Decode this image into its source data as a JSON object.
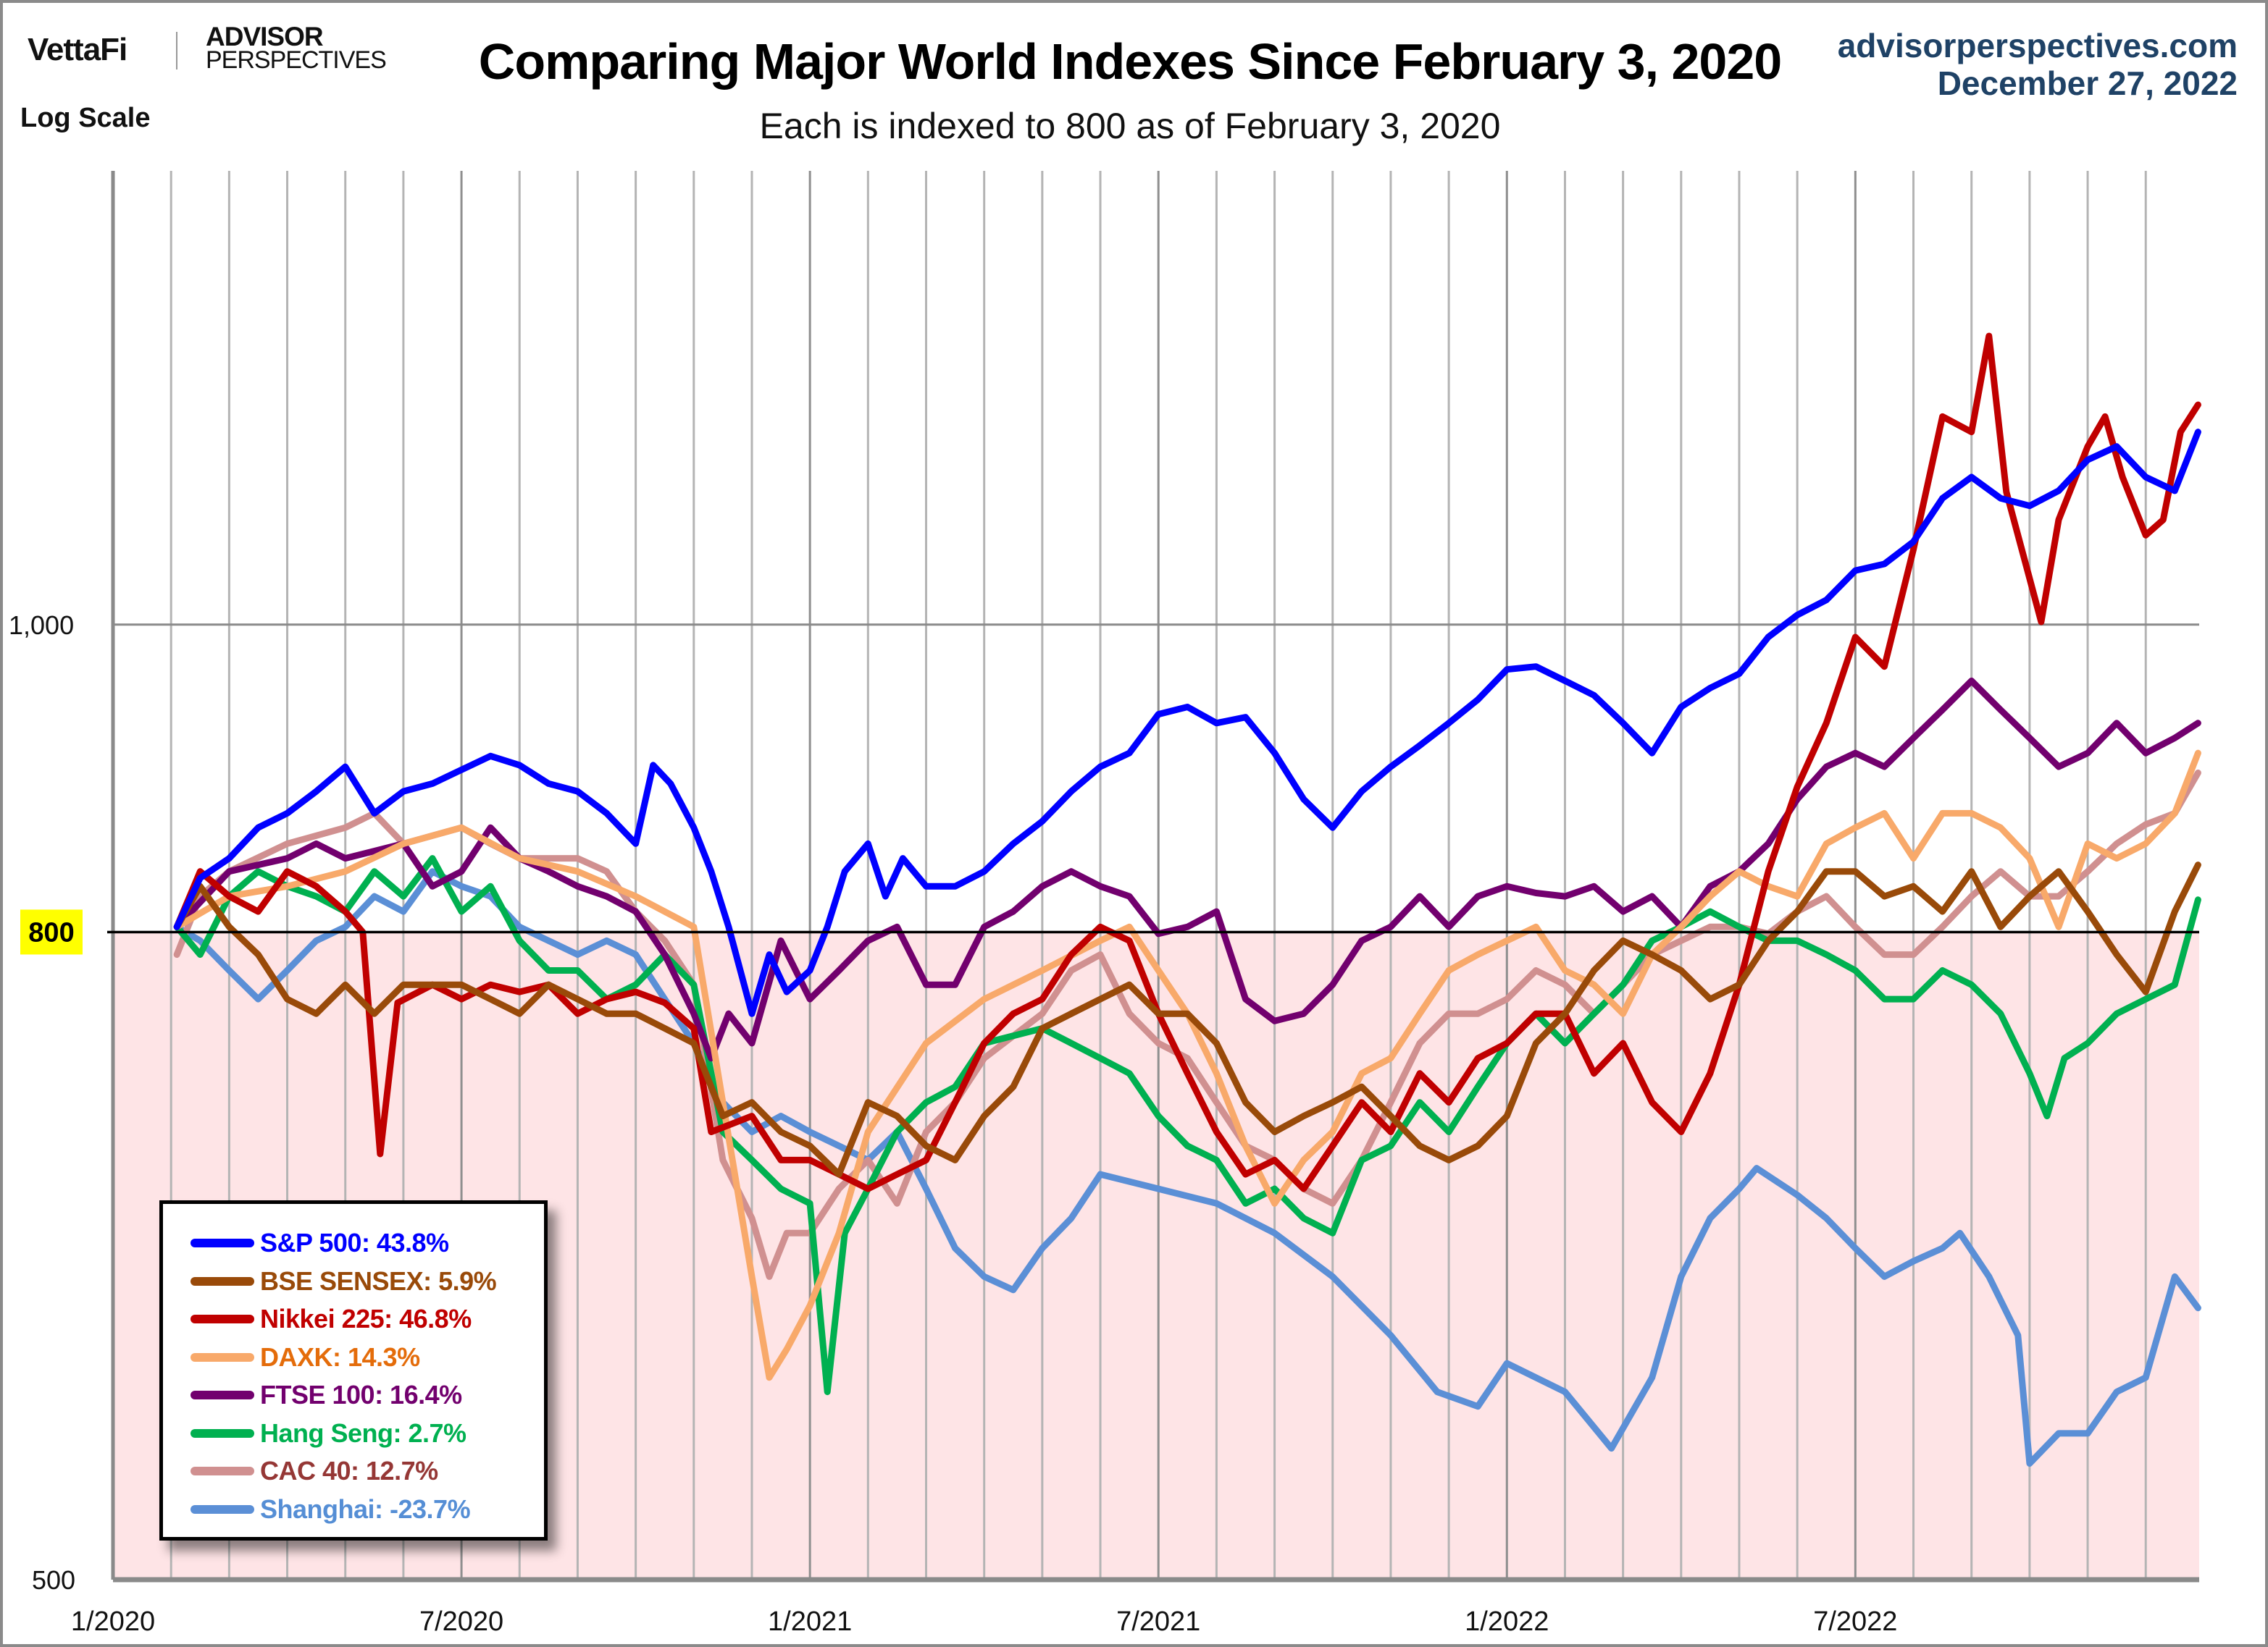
{
  "header": {
    "brand_vettafi": "VettaFi",
    "brand_advisor": "ADVISOR",
    "brand_perspectives": "PERSPECTIVES",
    "scale_note": "Log Scale",
    "site": "advisorperspectives.com",
    "date": "December 27, 2022"
  },
  "chart_data": {
    "type": "line",
    "title": "Comparing Major World Indexes Since February 3, 2020",
    "subtitle": "Each is indexed to 800 as of February 3, 2020",
    "xlabel": "",
    "ylabel": "",
    "y_scale": "log",
    "ylim": [
      500,
      1390
    ],
    "x_unit": "months since 1/2020",
    "xlim": [
      0,
      35.92
    ],
    "x_ticks": [
      {
        "x": 0,
        "label": "1/2020"
      },
      {
        "x": 6,
        "label": "7/2020"
      },
      {
        "x": 12,
        "label": "1/2021"
      },
      {
        "x": 18,
        "label": "7/2021"
      },
      {
        "x": 24,
        "label": "1/2022"
      },
      {
        "x": 30,
        "label": "7/2022"
      }
    ],
    "y_ticks": [
      {
        "value": 500,
        "label": "500"
      },
      {
        "value": 800,
        "label": "800",
        "highlight": true
      },
      {
        "value": 1000,
        "label": "1,000"
      }
    ],
    "reference_line": {
      "value": 800,
      "shade_below": true
    },
    "grid": {
      "vertical": "monthly",
      "horizontal": [
        1000
      ]
    },
    "legend_position": "bottom-left",
    "series": [
      {
        "name": "S&P 500",
        "label": "S&P 500: 43.8%",
        "change_pct": 43.8,
        "color": "#0000ff",
        "text_color": "#0000ff",
        "x": [
          1.1,
          1.5,
          2,
          2.5,
          3,
          3.5,
          4,
          4.5,
          5,
          5.5,
          6,
          6.5,
          7,
          7.5,
          8,
          8.5,
          9,
          9.3,
          9.6,
          10,
          10.3,
          10.6,
          11,
          11.3,
          11.6,
          12,
          12.3,
          12.6,
          13,
          13.3,
          13.6,
          14,
          14.5,
          15,
          15.5,
          16,
          16.5,
          17,
          17.5,
          18,
          18.5,
          19,
          19.5,
          20,
          20.5,
          21,
          21.5,
          22,
          22.5,
          23,
          23.5,
          24,
          24.5,
          25,
          25.5,
          26,
          26.5,
          27,
          27.5,
          28,
          28.5,
          29,
          29.5,
          30,
          30.5,
          31,
          31.5,
          32,
          32.5,
          33,
          33.5,
          34,
          34.5,
          35,
          35.5,
          35.9
        ],
        "values": [
          803,
          832,
          844,
          863,
          872,
          886,
          902,
          872,
          886,
          891,
          900,
          909,
          903,
          891,
          886,
          872,
          853,
          903,
          891,
          863,
          836,
          803,
          754,
          787,
          766,
          778,
          803,
          836,
          853,
          821,
          844,
          827,
          827,
          836,
          853,
          867,
          886,
          902,
          911,
          937,
          942,
          931,
          935,
          911,
          881,
          863,
          886,
          902,
          916,
          931,
          947,
          968,
          970,
          960,
          950,
          931,
          911,
          942,
          955,
          965,
          991,
          1007,
          1018,
          1040,
          1045,
          1062,
          1096,
          1113,
          1096,
          1090,
          1102,
          1127,
          1138,
          1113,
          1102,
          1150
        ]
      },
      {
        "name": "BSE SENSEX",
        "label": "BSE SENSEX: 5.9%",
        "change_pct": 5.9,
        "color": "#994a09",
        "text_color": "#994a09",
        "x": [
          1.1,
          1.5,
          2,
          2.5,
          3,
          3.5,
          4,
          4.5,
          5,
          6,
          6.5,
          7,
          7.5,
          8,
          8.5,
          9,
          9.5,
          10,
          10.5,
          11,
          11.5,
          12,
          12.5,
          13,
          13.5,
          14,
          14.5,
          15,
          15.5,
          16,
          16.5,
          17,
          17.5,
          18,
          18.5,
          19,
          19.5,
          20,
          20.5,
          21,
          21.5,
          22,
          22.5,
          23,
          23.5,
          24,
          24.5,
          25,
          25.5,
          26,
          26.5,
          27,
          27.5,
          28,
          28.5,
          29,
          29.5,
          30,
          30.5,
          31,
          31.5,
          32,
          32.5,
          33,
          33.5,
          34,
          34.5,
          35,
          35.5,
          35.9
        ],
        "values": [
          803,
          827,
          803,
          787,
          762,
          754,
          770,
          754,
          770,
          770,
          762,
          754,
          770,
          762,
          754,
          754,
          746,
          738,
          700,
          707,
          692,
          685,
          671,
          707,
          700,
          685,
          678,
          700,
          715,
          746,
          754,
          762,
          770,
          754,
          754,
          738,
          707,
          692,
          700,
          707,
          715,
          700,
          685,
          678,
          685,
          700,
          738,
          754,
          778,
          795,
          787,
          778,
          762,
          770,
          795,
          812,
          836,
          836,
          821,
          827,
          812,
          836,
          803,
          821,
          836,
          812,
          787,
          766,
          812,
          840
        ]
      },
      {
        "name": "Nikkei 225",
        "label": "Nikkei 225: 46.8%",
        "change_pct": 46.8,
        "color": "#c00000",
        "text_color": "#c00000",
        "x": [
          1.1,
          1.5,
          2,
          2.5,
          3,
          3.5,
          4,
          4.3,
          4.6,
          4.9,
          5.5,
          6,
          6.5,
          7,
          7.5,
          8,
          8.5,
          9,
          9.5,
          10,
          10.3,
          11,
          11.5,
          12,
          12.5,
          13,
          13.5,
          14,
          14.5,
          15,
          15.5,
          16,
          16.5,
          17,
          17.5,
          18,
          18.5,
          19,
          19.5,
          20,
          20.5,
          21,
          21.5,
          22,
          22.5,
          23,
          23.5,
          24,
          24.5,
          25,
          25.5,
          26,
          26.5,
          27,
          27.5,
          28,
          28.5,
          29,
          29.5,
          30,
          30.5,
          31,
          31.5,
          32,
          32.3,
          32.6,
          33,
          33.2,
          33.5,
          34,
          34.3,
          34.6,
          35,
          35.3,
          35.6,
          35.9
        ],
        "values": [
          803,
          836,
          821,
          812,
          836,
          827,
          812,
          800,
          681,
          760,
          770,
          762,
          770,
          766,
          770,
          754,
          762,
          766,
          760,
          746,
          692,
          700,
          678,
          678,
          671,
          664,
          671,
          678,
          707,
          738,
          754,
          762,
          787,
          803,
          795,
          754,
          722,
          692,
          671,
          678,
          664,
          685,
          707,
          692,
          722,
          707,
          730,
          738,
          754,
          754,
          722,
          738,
          707,
          692,
          722,
          770,
          836,
          889,
          931,
          991,
          970,
          1056,
          1163,
          1150,
          1233,
          1101,
          1034,
          1002,
          1079,
          1138,
          1163,
          1113,
          1067,
          1079,
          1150,
          1173
        ]
      },
      {
        "name": "DAXK",
        "label": "DAXK: 14.3%",
        "change_pct": 14.3,
        "color": "#f8a96a",
        "text_color": "#e46c0a",
        "x": [
          1.1,
          2,
          3,
          4,
          5,
          6,
          7,
          8,
          9,
          10,
          10.5,
          11,
          11.3,
          11.6,
          12,
          12.5,
          13,
          14,
          15,
          16,
          17,
          17.5,
          18,
          18.5,
          19,
          19.5,
          20,
          20.5,
          21,
          21.5,
          22,
          22.5,
          23,
          23.5,
          24,
          24.5,
          25,
          25.5,
          26,
          26.5,
          27,
          27.5,
          28,
          28.5,
          29,
          29.5,
          30,
          30.5,
          31,
          31.5,
          32,
          32.5,
          33,
          33.5,
          34,
          34.5,
          35,
          35.5,
          35.9
        ],
        "values": [
          803,
          821,
          827,
          836,
          853,
          863,
          844,
          836,
          821,
          803,
          707,
          623,
          579,
          591,
          610,
          643,
          692,
          738,
          762,
          778,
          795,
          803,
          778,
          754,
          722,
          685,
          657,
          678,
          692,
          722,
          730,
          754,
          778,
          787,
          795,
          803,
          778,
          770,
          754,
          787,
          803,
          821,
          836,
          827,
          821,
          853,
          863,
          872,
          844,
          872,
          872,
          863,
          844,
          803,
          853,
          844,
          853,
          872,
          911
        ]
      },
      {
        "name": "FTSE 100",
        "label": "FTSE 100: 16.4%",
        "change_pct": 16.4,
        "color": "#72006e",
        "text_color": "#72006e",
        "x": [
          1.1,
          2,
          3,
          3.5,
          4,
          5,
          5.5,
          6,
          6.5,
          7,
          7.5,
          8,
          8.5,
          9,
          9.5,
          10,
          10.3,
          10.6,
          11,
          11.5,
          12,
          12.5,
          13,
          13.5,
          14,
          14.5,
          15,
          15.5,
          16,
          16.5,
          17,
          17.5,
          18,
          18.5,
          19,
          19.5,
          20,
          20.5,
          21,
          21.5,
          22,
          22.5,
          23,
          23.5,
          24,
          24.5,
          25,
          25.5,
          26,
          26.5,
          27,
          27.5,
          28,
          28.5,
          29,
          29.5,
          30,
          30.5,
          31,
          31.5,
          32,
          32.5,
          33,
          33.5,
          34,
          34.5,
          35,
          35.5,
          35.9
        ],
        "values": [
          803,
          836,
          844,
          853,
          844,
          853,
          827,
          836,
          863,
          844,
          836,
          827,
          821,
          812,
          787,
          754,
          730,
          754,
          738,
          795,
          762,
          778,
          795,
          803,
          770,
          770,
          803,
          812,
          827,
          836,
          827,
          821,
          799,
          803,
          812,
          762,
          750,
          754,
          770,
          795,
          803,
          821,
          803,
          821,
          827,
          823,
          821,
          827,
          812,
          821,
          803,
          827,
          836,
          853,
          881,
          902,
          911,
          902,
          921,
          940,
          960,
          940,
          921,
          902,
          911,
          931,
          911,
          921,
          931
        ]
      },
      {
        "name": "Hang Seng",
        "label": "Hang Seng: 2.7%",
        "change_pct": 2.7,
        "color": "#00b050",
        "text_color": "#00b050",
        "x": [
          1.1,
          1.5,
          2,
          2.5,
          3,
          3.5,
          4,
          4.5,
          5,
          5.5,
          6,
          6.5,
          7,
          7.5,
          8,
          8.5,
          9,
          9.5,
          10,
          10.5,
          11,
          11.5,
          12,
          12.3,
          12.6,
          13,
          13.5,
          14,
          14.5,
          15,
          16,
          16.5,
          17,
          17.5,
          18,
          18.5,
          19,
          19.5,
          20,
          20.5,
          21,
          21.5,
          22,
          22.5,
          23,
          23.5,
          24,
          24.5,
          25,
          25.5,
          26,
          26.5,
          27,
          27.5,
          28,
          28.5,
          29,
          29.5,
          30,
          30.5,
          31,
          31.5,
          32,
          32.5,
          33,
          33.3,
          33.6,
          34,
          34.5,
          35,
          35.5,
          35.9
        ],
        "values": [
          803,
          787,
          821,
          836,
          827,
          821,
          812,
          836,
          821,
          844,
          812,
          827,
          795,
          778,
          778,
          762,
          770,
          787,
          770,
          692,
          678,
          664,
          657,
          573,
          643,
          664,
          692,
          707,
          715,
          738,
          746,
          738,
          730,
          722,
          700,
          685,
          678,
          657,
          664,
          650,
          643,
          678,
          685,
          707,
          692,
          715,
          738,
          754,
          738,
          754,
          770,
          795,
          803,
          812,
          803,
          795,
          795,
          787,
          778,
          762,
          762,
          778,
          770,
          754,
          722,
          700,
          730,
          738,
          754,
          762,
          770,
          819
        ]
      },
      {
        "name": "CAC 40",
        "label": "CAC 40: 12.7%",
        "change_pct": 12.7,
        "color": "#d09090",
        "text_color": "#953735",
        "x": [
          1.1,
          1.5,
          2,
          3,
          4,
          4.5,
          5,
          6,
          6.5,
          7,
          8,
          8.5,
          9,
          9.5,
          10,
          10.5,
          11,
          11.3,
          11.6,
          12,
          12.5,
          13,
          13.5,
          14,
          14.5,
          15,
          16,
          16.5,
          17,
          17.5,
          18,
          18.5,
          19,
          19.5,
          20,
          20.5,
          21,
          21.5,
          22,
          22.5,
          23,
          23.5,
          24,
          24.5,
          25,
          25.5,
          26,
          26.5,
          27,
          27.5,
          28,
          28.5,
          29,
          29.5,
          30,
          30.5,
          31,
          31.5,
          32,
          32.5,
          33,
          33.5,
          34,
          34.5,
          35,
          35.5,
          35.9
        ],
        "values": [
          787,
          821,
          836,
          853,
          863,
          872,
          853,
          863,
          853,
          844,
          844,
          836,
          812,
          795,
          770,
          678,
          650,
          623,
          643,
          643,
          664,
          678,
          657,
          692,
          707,
          730,
          754,
          778,
          787,
          754,
          738,
          730,
          707,
          685,
          678,
          664,
          657,
          678,
          707,
          738,
          754,
          754,
          762,
          778,
          770,
          754,
          770,
          787,
          795,
          803,
          803,
          799,
          812,
          821,
          803,
          787,
          787,
          803,
          821,
          836,
          821,
          821,
          836,
          853,
          865,
          872,
          898
        ]
      },
      {
        "name": "Shanghai",
        "label": "Shanghai: -23.7%",
        "change_pct": -23.7,
        "color": "#5b8fd6",
        "text_color": "#558ed5",
        "x": [
          1.1,
          1.5,
          2,
          2.5,
          3,
          3.5,
          4,
          4.5,
          5,
          5.5,
          6,
          6.5,
          7,
          7.5,
          8,
          8.5,
          9,
          9.5,
          10,
          10.5,
          11,
          11.5,
          12,
          12.5,
          13,
          13.5,
          14,
          14.5,
          15,
          15.5,
          16,
          16.5,
          17,
          18,
          19,
          20,
          21,
          22,
          22.8,
          23.5,
          24,
          25,
          25.8,
          26.5,
          27,
          27.5,
          28,
          28.3,
          29,
          29.5,
          30,
          30.5,
          31,
          31.5,
          31.8,
          32.3,
          32.8,
          33,
          33.5,
          34,
          34.5,
          35,
          35.5,
          35.9
        ],
        "values": [
          803,
          795,
          778,
          762,
          778,
          795,
          803,
          821,
          812,
          836,
          827,
          821,
          803,
          795,
          787,
          795,
          787,
          762,
          738,
          707,
          692,
          700,
          692,
          685,
          678,
          692,
          664,
          636,
          623,
          617,
          636,
          650,
          671,
          664,
          657,
          643,
          623,
          597,
          573,
          567,
          585,
          573,
          550,
          579,
          623,
          650,
          664,
          674,
          661,
          650,
          636,
          623,
          630,
          636,
          643,
          623,
          597,
          544,
          556,
          556,
          573,
          579,
          623,
          609
        ]
      }
    ]
  }
}
